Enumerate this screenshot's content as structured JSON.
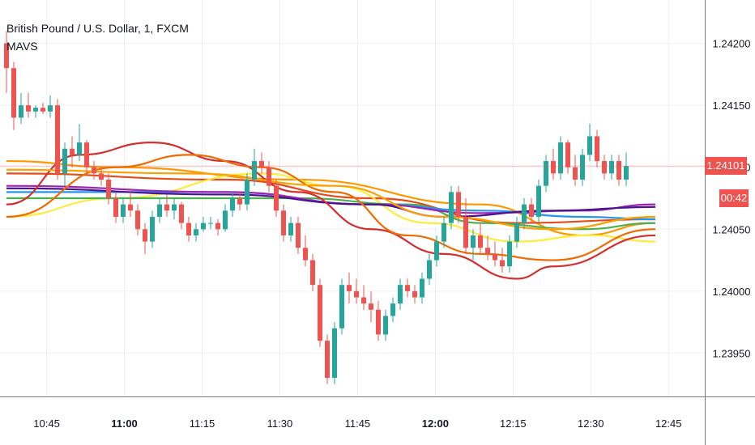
{
  "chart_data": {
    "type": "candlestick",
    "title": "British Pound / U.S. Dollar, 1, FXCM",
    "indicator": "MAVS",
    "y_ticks": [
      1.242,
      1.2415,
      1.241,
      1.2405,
      1.24,
      1.2395
    ],
    "y_tick_labels": [
      "1.24200",
      "1.24150",
      "1.24100",
      "1.24050",
      "1.24000",
      "1.23950"
    ],
    "ylim": [
      1.23915,
      1.24235
    ],
    "xlim": [
      "10:36",
      "12:52"
    ],
    "x_ticks": [
      "10:45",
      "11:00",
      "11:15",
      "11:30",
      "11:45",
      "12:00",
      "12:15",
      "12:30",
      "12:45"
    ],
    "x_tick_bold": [
      "11:00",
      "12:00"
    ],
    "last_price": "1.24101",
    "countdown": "00:42",
    "grid": true,
    "colors": {
      "up": "#26a69a",
      "down": "#ef5350",
      "grid": "#eef0f3",
      "axis": "#787b86",
      "price_line": "#ef5350"
    },
    "candles": [
      [
        1.242,
        1.2421,
        1.2416,
        1.2418
      ],
      [
        1.2418,
        1.24185,
        1.2413,
        1.2414
      ],
      [
        1.2414,
        1.2416,
        1.24135,
        1.2415
      ],
      [
        1.2415,
        1.2416,
        1.2414,
        1.24145
      ],
      [
        1.24145,
        1.2415,
        1.2414,
        1.24148
      ],
      [
        1.24148,
        1.24152,
        1.24143,
        1.24145
      ],
      [
        1.24145,
        1.24158,
        1.2414,
        1.2415
      ],
      [
        1.2415,
        1.24155,
        1.2409,
        1.24095
      ],
      [
        1.24095,
        1.2412,
        1.24085,
        1.24115
      ],
      [
        1.24115,
        1.24125,
        1.241,
        1.2411
      ],
      [
        1.2411,
        1.24135,
        1.24105,
        1.2412
      ],
      [
        1.2412,
        1.24122,
        1.24095,
        1.241
      ],
      [
        1.241,
        1.24105,
        1.2409,
        1.24095
      ],
      [
        1.24095,
        1.241,
        1.24085,
        1.2409
      ],
      [
        1.2409,
        1.24095,
        1.2407,
        1.24075
      ],
      [
        1.24075,
        1.2408,
        1.24055,
        1.2406
      ],
      [
        1.2406,
        1.24075,
        1.24055,
        1.2407
      ],
      [
        1.2407,
        1.2408,
        1.2406,
        1.24065
      ],
      [
        1.24065,
        1.2407,
        1.24045,
        1.2405
      ],
      [
        1.2405,
        1.24055,
        1.2403,
        1.2404
      ],
      [
        1.2404,
        1.24065,
        1.24035,
        1.2406
      ],
      [
        1.2406,
        1.24075,
        1.24055,
        1.2407
      ],
      [
        1.2407,
        1.24078,
        1.2406,
        1.24065
      ],
      [
        1.24065,
        1.24075,
        1.24058,
        1.2407
      ],
      [
        1.2407,
        1.24072,
        1.2405,
        1.24055
      ],
      [
        1.24055,
        1.2406,
        1.2404,
        1.24045
      ],
      [
        1.24045,
        1.24055,
        1.2404,
        1.2405
      ],
      [
        1.2405,
        1.2406,
        1.24048,
        1.24055
      ],
      [
        1.24055,
        1.2406,
        1.2405,
        1.24055
      ],
      [
        1.24055,
        1.24058,
        1.24045,
        1.2405
      ],
      [
        1.2405,
        1.2407,
        1.24048,
        1.24065
      ],
      [
        1.24065,
        1.2408,
        1.2406,
        1.24075
      ],
      [
        1.24075,
        1.2408,
        1.24065,
        1.2407
      ],
      [
        1.2407,
        1.24095,
        1.24065,
        1.2409
      ],
      [
        1.2409,
        1.24115,
        1.24085,
        1.24105
      ],
      [
        1.24105,
        1.24112,
        1.24095,
        1.241
      ],
      [
        1.241,
        1.24105,
        1.2408,
        1.24085
      ],
      [
        1.24085,
        1.2409,
        1.2406,
        1.24065
      ],
      [
        1.24065,
        1.2407,
        1.2404,
        1.24045
      ],
      [
        1.24045,
        1.2406,
        1.2404,
        1.24055
      ],
      [
        1.24055,
        1.2406,
        1.2403,
        1.24035
      ],
      [
        1.24035,
        1.24045,
        1.2402,
        1.24025
      ],
      [
        1.24025,
        1.2403,
        1.24,
        1.24005
      ],
      [
        1.24005,
        1.2401,
        1.23955,
        1.2396
      ],
      [
        1.2396,
        1.23965,
        1.23925,
        1.2393
      ],
      [
        1.2393,
        1.23975,
        1.23925,
        1.2397
      ],
      [
        1.2397,
        1.2401,
        1.23965,
        1.24005
      ],
      [
        1.24005,
        1.24015,
        1.2399,
        1.24
      ],
      [
        1.24,
        1.2401,
        1.2399,
        1.23995
      ],
      [
        1.23995,
        1.24005,
        1.23985,
        1.2399
      ],
      [
        1.2399,
        1.24,
        1.23975,
        1.23985
      ],
      [
        1.23985,
        1.23992,
        1.2396,
        1.23965
      ],
      [
        1.23965,
        1.23985,
        1.2396,
        1.2398
      ],
      [
        1.2398,
        1.23995,
        1.23975,
        1.2399
      ],
      [
        1.2399,
        1.2401,
        1.23985,
        1.24005
      ],
      [
        1.24005,
        1.2401,
        1.23995,
        1.24
      ],
      [
        1.24,
        1.24005,
        1.2399,
        1.23995
      ],
      [
        1.23995,
        1.24015,
        1.2399,
        1.2401
      ],
      [
        1.2401,
        1.2403,
        1.24005,
        1.24025
      ],
      [
        1.24025,
        1.24045,
        1.2402,
        1.2404
      ],
      [
        1.2404,
        1.2406,
        1.24035,
        1.24055
      ],
      [
        1.24055,
        1.24085,
        1.2405,
        1.2408
      ],
      [
        1.2408,
        1.24085,
        1.24055,
        1.2406
      ],
      [
        1.2406,
        1.24075,
        1.2403,
        1.24035
      ],
      [
        1.24035,
        1.2405,
        1.24025,
        1.24045
      ],
      [
        1.24045,
        1.24055,
        1.2403,
        1.24035
      ],
      [
        1.24035,
        1.24045,
        1.24025,
        1.2403
      ],
      [
        1.2403,
        1.2404,
        1.2402,
        1.24025
      ],
      [
        1.24025,
        1.24035,
        1.24015,
        1.2402
      ],
      [
        1.2402,
        1.24045,
        1.24015,
        1.2404
      ],
      [
        1.2404,
        1.2406,
        1.24035,
        1.24055
      ],
      [
        1.24055,
        1.24075,
        1.2405,
        1.2407
      ],
      [
        1.2407,
        1.24075,
        1.24055,
        1.2406
      ],
      [
        1.2406,
        1.2409,
        1.24055,
        1.24085
      ],
      [
        1.24085,
        1.2411,
        1.2408,
        1.24105
      ],
      [
        1.24105,
        1.24115,
        1.2409,
        1.24095
      ],
      [
        1.24095,
        1.24125,
        1.2409,
        1.2412
      ],
      [
        1.2412,
        1.24122,
        1.24095,
        1.241
      ],
      [
        1.241,
        1.2411,
        1.24085,
        1.2409
      ],
      [
        1.2409,
        1.24115,
        1.24085,
        1.2411
      ],
      [
        1.2411,
        1.24135,
        1.24105,
        1.24125
      ],
      [
        1.24125,
        1.2413,
        1.241,
        1.24105
      ],
      [
        1.24105,
        1.2411,
        1.2409,
        1.24095
      ],
      [
        1.24095,
        1.2411,
        1.2409,
        1.24105
      ],
      [
        1.24105,
        1.2411,
        1.24085,
        1.2409
      ],
      [
        1.2409,
        1.24112,
        1.24085,
        1.24101
      ]
    ],
    "series": [
      {
        "color": "#ff9800",
        "values": [
          [
            0,
            1.24105
          ],
          [
            15,
            1.241
          ],
          [
            40,
            1.2409
          ],
          [
            65,
            1.2407
          ],
          [
            79,
            1.24045
          ],
          [
            89,
            1.24055
          ]
        ]
      },
      {
        "color": "#e64a19",
        "values": [
          [
            0,
            1.24095
          ],
          [
            30,
            1.2409
          ],
          [
            50,
            1.24075
          ],
          [
            70,
            1.24055
          ],
          [
            89,
            1.24058
          ]
        ]
      },
      {
        "color": "#ffeb3b",
        "values": [
          [
            0,
            1.2406
          ],
          [
            15,
            1.24075
          ],
          [
            35,
            1.24095
          ],
          [
            45,
            1.24085
          ],
          [
            58,
            1.24055
          ],
          [
            70,
            1.2404
          ],
          [
            80,
            1.24045
          ],
          [
            89,
            1.2404
          ]
        ]
      },
      {
        "color": "#4caf50",
        "values": [
          [
            0,
            1.24075
          ],
          [
            20,
            1.24075
          ],
          [
            40,
            1.24075
          ],
          [
            55,
            1.2407
          ],
          [
            65,
            1.24055
          ],
          [
            79,
            1.2405
          ],
          [
            89,
            1.24055
          ]
        ]
      },
      {
        "color": "#2196f3",
        "values": [
          [
            0,
            1.2408
          ],
          [
            30,
            1.2408
          ],
          [
            50,
            1.2407
          ],
          [
            65,
            1.24065
          ],
          [
            79,
            1.2406
          ],
          [
            89,
            1.24058
          ]
        ]
      },
      {
        "color": "#9c27b0",
        "values": [
          [
            0,
            1.24085
          ],
          [
            30,
            1.2408
          ],
          [
            50,
            1.2407
          ],
          [
            65,
            1.24063
          ],
          [
            79,
            1.24065
          ],
          [
            89,
            1.2407
          ]
        ]
      },
      {
        "color": "#4a148c",
        "values": [
          [
            0,
            1.24083
          ],
          [
            30,
            1.24078
          ],
          [
            50,
            1.2407
          ],
          [
            60,
            1.2406
          ],
          [
            75,
            1.24065
          ],
          [
            89,
            1.24068
          ]
        ]
      },
      {
        "color": "#d32f2f",
        "values": [
          [
            0,
            1.2407
          ],
          [
            10,
            1.2411
          ],
          [
            20,
            1.2412
          ],
          [
            30,
            1.24105
          ],
          [
            40,
            1.2408
          ],
          [
            50,
            1.2405
          ],
          [
            60,
            1.2403
          ],
          [
            70,
            1.2401
          ],
          [
            75,
            1.2402
          ],
          [
            89,
            1.24045
          ]
        ]
      },
      {
        "color": "#ef6c00",
        "values": [
          [
            0,
            1.2406
          ],
          [
            15,
            1.241
          ],
          [
            25,
            1.2411
          ],
          [
            35,
            1.241
          ],
          [
            45,
            1.2408
          ],
          [
            55,
            1.24045
          ],
          [
            65,
            1.2403
          ],
          [
            75,
            1.24025
          ],
          [
            89,
            1.2405
          ]
        ]
      },
      {
        "color": "#ffa000",
        "values": [
          [
            0,
            1.24098
          ],
          [
            25,
            1.24095
          ],
          [
            45,
            1.24085
          ],
          [
            60,
            1.2406
          ],
          [
            75,
            1.2405
          ],
          [
            89,
            1.2406
          ]
        ]
      }
    ]
  }
}
